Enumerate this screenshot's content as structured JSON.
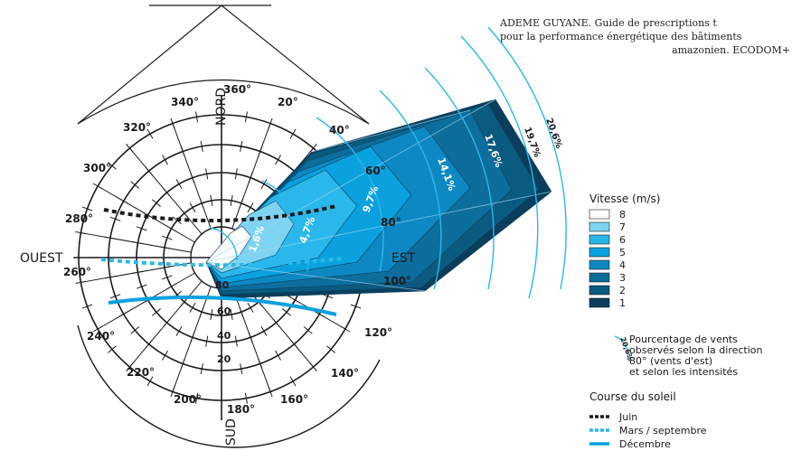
{
  "source": {
    "line1": "ADEME GUYANE. Guide de prescriptions t",
    "line2": "pour la performance énergétique des bâtiments",
    "line3": "amazonien. ECODOM+"
  },
  "directions": {
    "north": "NORD",
    "south": "SUD",
    "east": "EST",
    "west": "OUEST"
  },
  "degree_labels": [
    "360°",
    "20°",
    "40°",
    "60°",
    "80°",
    "100°",
    "120°",
    "140°",
    "160°",
    "180°",
    "200°",
    "220°",
    "240°",
    "260°",
    "280°",
    "300°",
    "320°",
    "340°"
  ],
  "altitude_labels": [
    "80",
    "60",
    "40",
    "20"
  ],
  "wind_percentages": [
    "1,6%",
    "4,7%",
    "9,7%",
    "14,1%",
    "17,6%",
    "19,7%",
    "20,6%"
  ],
  "legend": {
    "speed_title": "Vitesse (m/s)",
    "speed_items": [
      {
        "label": "8",
        "color": "#ffffff"
      },
      {
        "label": "7",
        "color": "#7fd3f2"
      },
      {
        "label": "6",
        "color": "#2ab8ec"
      },
      {
        "label": "5",
        "color": "#0aa1de"
      },
      {
        "label": "4",
        "color": "#0e88c2"
      },
      {
        "label": "3",
        "color": "#0d6d9c"
      },
      {
        "label": "2",
        "color": "#0b5a80"
      },
      {
        "label": "1",
        "color": "#0a3e5c"
      }
    ],
    "pct_sample": "20,6%",
    "pct_line1": "Pourcentage de vents",
    "pct_line2": "observés selon la direction",
    "pct_line3": "80° (vents d'est)",
    "pct_line4": "et selon les intensités",
    "sun_title": "Course du soleil",
    "sun_items": [
      {
        "label": "Juin",
        "color": "#1a1a1a"
      },
      {
        "label": "Mars / septembre",
        "color": "#2ab8ec"
      },
      {
        "label": "Décembre",
        "color": "#0aa1de"
      }
    ]
  }
}
